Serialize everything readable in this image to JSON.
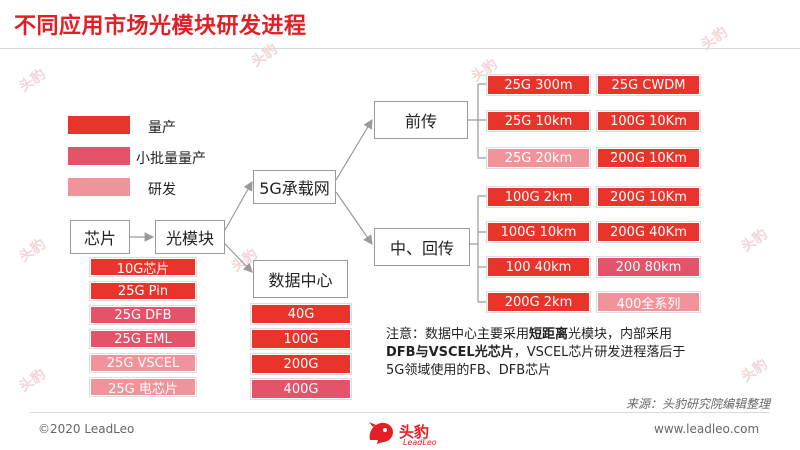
{
  "title": "不同应用市场光模块研发进程",
  "watermark": "头豹",
  "legend": [
    {
      "label": "量产",
      "color": "#e8342a"
    },
    {
      "label": "小批量量产",
      "color": "#e3536a"
    },
    {
      "label": "研发",
      "color": "#f1939b"
    }
  ],
  "nodes": {
    "chip": "芯片",
    "module": "光模块",
    "network5g": "5G承载网",
    "datacenter": "数据中心",
    "fronthaul": "前传",
    "midbackhaul": "中、回传"
  },
  "chip_list": [
    {
      "label": "10G芯片",
      "status": "mass"
    },
    {
      "label": "25G Pin",
      "status": "mass"
    },
    {
      "label": "25G DFB",
      "status": "small"
    },
    {
      "label": "25G EML",
      "status": "small"
    },
    {
      "label": "25G VSCEL",
      "status": "rd"
    },
    {
      "label": "25G 电芯片",
      "status": "rd"
    }
  ],
  "datacenter_list": [
    {
      "label": "40G",
      "status": "mass"
    },
    {
      "label": "100G",
      "status": "mass"
    },
    {
      "label": "200G",
      "status": "mass"
    },
    {
      "label": "400G",
      "status": "small"
    }
  ],
  "fronthaul_grid": [
    [
      {
        "label": "25G 300m",
        "status": "mass"
      },
      {
        "label": "25G CWDM",
        "status": "mass"
      }
    ],
    [
      {
        "label": "25G 10km",
        "status": "mass"
      },
      {
        "label": "100G 10Km",
        "status": "mass"
      }
    ],
    [
      {
        "label": "25G 20km",
        "status": "rd"
      },
      {
        "label": "200G 10Km",
        "status": "mass"
      }
    ]
  ],
  "midbackhaul_grid": [
    [
      {
        "label": "100G 2km",
        "status": "mass"
      },
      {
        "label": "200G 10Km",
        "status": "mass"
      }
    ],
    [
      {
        "label": "100G 10km",
        "status": "mass"
      },
      {
        "label": "200G 40Km",
        "status": "mass"
      }
    ],
    [
      {
        "label": "100 40km",
        "status": "mass"
      },
      {
        "label": "200 80km",
        "status": "small"
      }
    ],
    [
      {
        "label": "200G 2km",
        "status": "mass"
      },
      {
        "label": "400全系列",
        "status": "rd"
      }
    ]
  ],
  "note": {
    "p1": "注意：数据中心主要采用",
    "b1": "短距离",
    "p2": "光模块，内部采用",
    "b2": "DFB与VSCEL光芯片",
    "p3": "，VSCEL芯片研发进程落后于5G领域使用的FB、DFB芯片"
  },
  "source": "来源：头豹研究院编辑整理",
  "footer": {
    "copyright": "©2020 LeadLeo",
    "url": "www.leadleo.com",
    "logo_cn": "头豹",
    "logo_en": "LeadLeo"
  }
}
